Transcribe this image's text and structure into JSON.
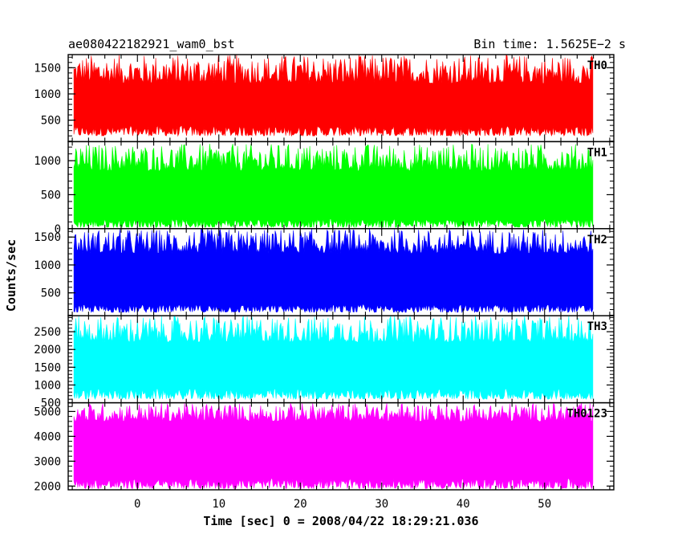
{
  "header": {
    "title_left": "ae080422182921_wam0_bst",
    "title_right": "Bin time: 1.5625E−2 s"
  },
  "chart_data": {
    "type": "line",
    "xlabel": "Time [sec] 0 = 2008/04/22 18:29:21.036",
    "ylabel": "Counts/sec",
    "xlim": [
      -8.5,
      58.5
    ],
    "x_data_range": [
      -7.8,
      56.0
    ],
    "x_ticks": [
      0,
      10,
      20,
      30,
      40,
      50
    ],
    "x_tick_labels": [
      "0",
      "10",
      "20",
      "30",
      "40",
      "50"
    ],
    "bin_time": 0.015625,
    "series": [
      {
        "name": "TH0",
        "color": "#ff0000",
        "ylim": [
          90,
          1750
        ],
        "y_ticks": [
          500,
          1000,
          1500
        ],
        "y_tick_labels": [
          "500",
          "1000",
          "1500"
        ],
        "baseline": 900,
        "low_range": [
          200,
          400
        ],
        "high_range": [
          1200,
          1750
        ]
      },
      {
        "name": "TH1",
        "color": "#00ff00",
        "ylim": [
          0,
          1280
        ],
        "y_ticks": [
          0,
          500,
          1000
        ],
        "y_tick_labels": [
          "0",
          "500",
          "1000"
        ],
        "baseline": 450,
        "low_range": [
          20,
          150
        ],
        "high_range": [
          850,
          1250
        ]
      },
      {
        "name": "TH2",
        "color": "#0000ff",
        "ylim": [
          90,
          1650
        ],
        "y_ticks": [
          500,
          1000,
          1500
        ],
        "y_tick_labels": [
          "500",
          "1000",
          "1500"
        ],
        "baseline": 800,
        "low_range": [
          150,
          300
        ],
        "high_range": [
          1200,
          1650
        ]
      },
      {
        "name": "TH3",
        "color": "#00ffff",
        "ylim": [
          500,
          2950
        ],
        "y_ticks": [
          500,
          1000,
          1500,
          2000,
          2500
        ],
        "y_tick_labels": [
          "500",
          "1000",
          "1500",
          "2000",
          "2500"
        ],
        "baseline": 1550,
        "low_range": [
          600,
          900
        ],
        "high_range": [
          2200,
          2950
        ]
      },
      {
        "name": "TH0123",
        "color": "#ff00ff",
        "ylim": [
          1850,
          5350
        ],
        "y_ticks": [
          2000,
          3000,
          4000,
          5000
        ],
        "y_tick_labels": [
          "2000",
          "3000",
          "4000",
          "5000"
        ],
        "baseline": 3500,
        "low_range": [
          1900,
          2300
        ],
        "high_range": [
          4600,
          5350
        ]
      }
    ]
  }
}
